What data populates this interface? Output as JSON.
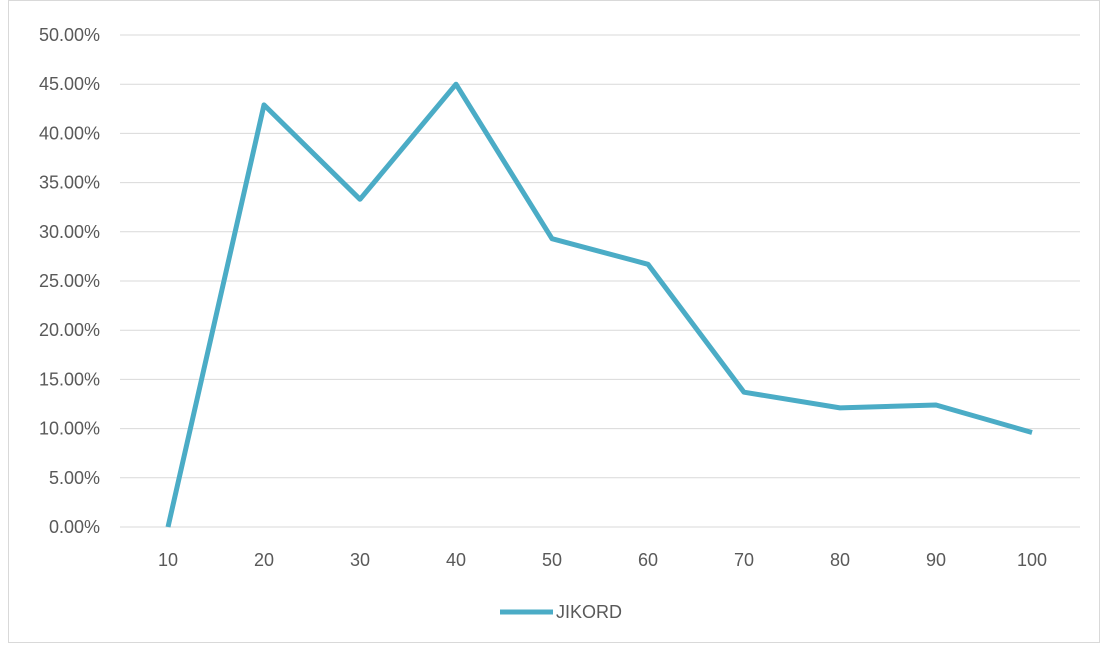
{
  "chart_data": {
    "type": "line",
    "categories": [
      "10",
      "20",
      "30",
      "40",
      "50",
      "60",
      "70",
      "80",
      "90",
      "100"
    ],
    "series": [
      {
        "name": "JIKORD",
        "color": "#4bacc6",
        "values": [
          0.0,
          42.9,
          33.3,
          45.0,
          29.3,
          26.7,
          13.7,
          12.1,
          12.4,
          9.6
        ]
      }
    ],
    "ylim": [
      0,
      50
    ],
    "yticks": [
      "0.00%",
      "5.00%",
      "10.00%",
      "15.00%",
      "20.00%",
      "25.00%",
      "30.00%",
      "35.00%",
      "40.00%",
      "45.00%",
      "50.00%"
    ],
    "grid": true,
    "legend_position": "bottom",
    "title": "",
    "xlabel": "",
    "ylabel": ""
  }
}
